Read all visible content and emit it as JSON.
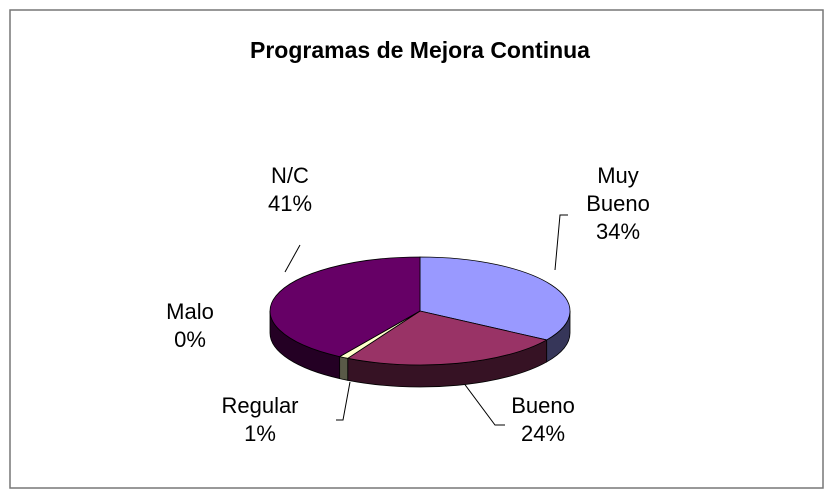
{
  "chart_data": {
    "type": "pie",
    "title": "Programas de Mejora Continua",
    "categories": [
      "Muy Bueno",
      "Bueno",
      "Regular",
      "Malo",
      "N/C"
    ],
    "values": [
      34,
      24,
      1,
      0,
      41
    ],
    "value_labels": [
      "34%",
      "24%",
      "1%",
      "0%",
      "41%"
    ],
    "colors": [
      "#9999ff",
      "#993366",
      "#ffffcc",
      "#ccffff",
      "#660066"
    ]
  }
}
